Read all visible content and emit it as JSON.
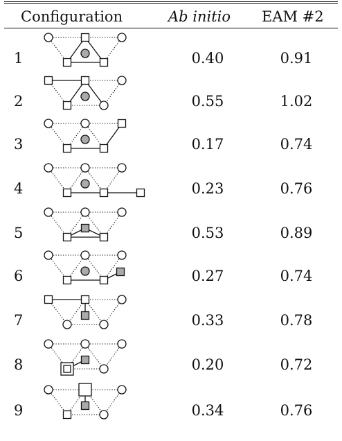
{
  "table": {
    "headers": {
      "configuration": "Configuration",
      "ab_initio": "Ab initio",
      "eam": "EAM #2"
    },
    "rows": [
      {
        "id": "1",
        "ab_initio": "0.40",
        "eam": "0.91"
      },
      {
        "id": "2",
        "ab_initio": "0.55",
        "eam": "1.02"
      },
      {
        "id": "3",
        "ab_initio": "0.17",
        "eam": "0.74"
      },
      {
        "id": "4",
        "ab_initio": "0.23",
        "eam": "0.76"
      },
      {
        "id": "5",
        "ab_initio": "0.53",
        "eam": "0.89"
      },
      {
        "id": "6",
        "ab_initio": "0.27",
        "eam": "0.74"
      },
      {
        "id": "7",
        "ab_initio": "0.33",
        "eam": "0.78"
      },
      {
        "id": "8",
        "ab_initio": "0.20",
        "eam": "0.72"
      },
      {
        "id": "9",
        "ab_initio": "0.34",
        "eam": "0.76"
      }
    ]
  },
  "colors": {
    "line": "#111111",
    "fill_open": "#ffffff",
    "fill_gray": "#aaaaaa"
  }
}
